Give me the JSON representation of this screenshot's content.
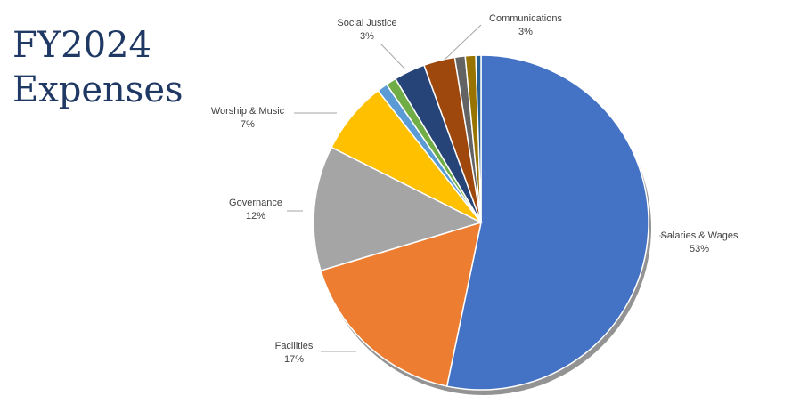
{
  "title": {
    "line1": "FY2024",
    "line2": "Expenses"
  },
  "chart_data": {
    "type": "pie",
    "title": "",
    "slices": [
      {
        "label": "Salaries & Wages",
        "value": 53,
        "pct_label": "53%",
        "color": "#4472c4",
        "show_label": true
      },
      {
        "label": "Facilities",
        "value": 17,
        "pct_label": "17%",
        "color": "#ed7d31",
        "show_label": true
      },
      {
        "label": "Governance",
        "value": 12,
        "pct_label": "12%",
        "color": "#a5a5a5",
        "show_label": true
      },
      {
        "label": "Worship & Music",
        "value": 7,
        "pct_label": "7%",
        "color": "#ffc000",
        "show_label": true
      },
      {
        "label": "",
        "value": 1,
        "pct_label": "",
        "color": "#5b9bd5",
        "show_label": false
      },
      {
        "label": "",
        "value": 1,
        "pct_label": "",
        "color": "#70ad47",
        "show_label": false
      },
      {
        "label": "Social Justice",
        "value": 3,
        "pct_label": "3%",
        "color": "#264478",
        "show_label": true
      },
      {
        "label": "Communications",
        "value": 3,
        "pct_label": "3%",
        "color": "#9e480e",
        "show_label": true
      },
      {
        "label": "",
        "value": 1,
        "pct_label": "",
        "color": "#636363",
        "show_label": false
      },
      {
        "label": "",
        "value": 1,
        "pct_label": "",
        "color": "#997300",
        "show_label": false
      },
      {
        "label": "",
        "value": 0.5,
        "pct_label": "",
        "color": "#255e91",
        "show_label": false
      }
    ],
    "start_angle_deg": 0,
    "direction": "clockwise",
    "legend": "none",
    "data_labels": "outside-with-leader-lines"
  }
}
